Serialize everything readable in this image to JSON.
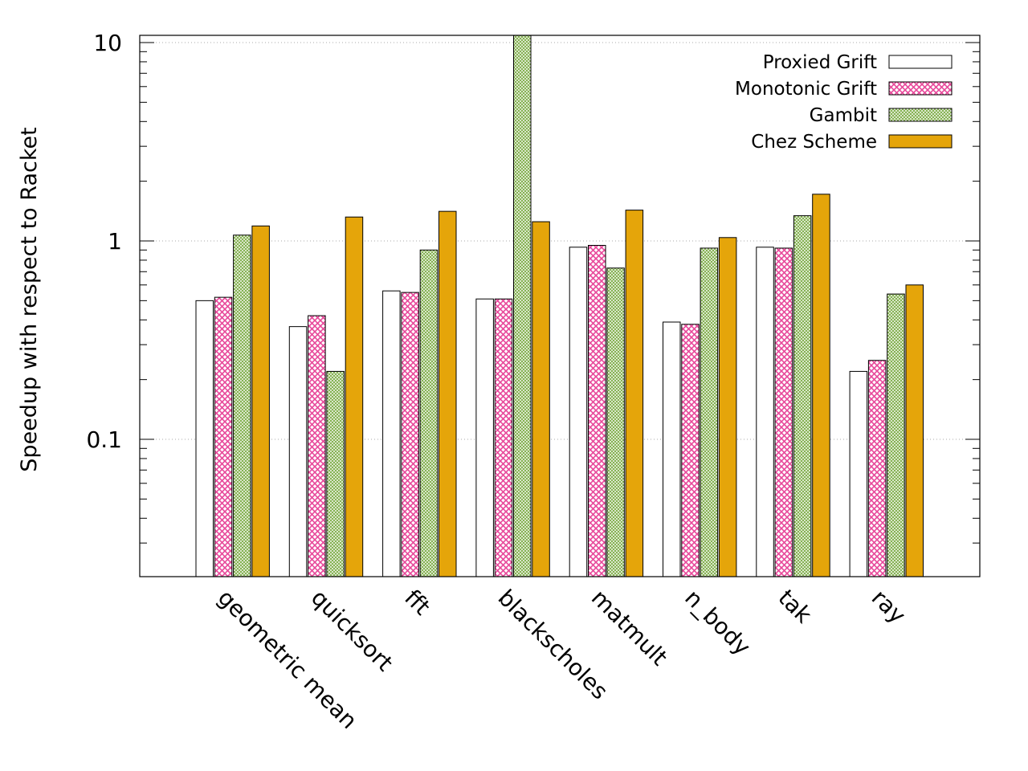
{
  "chart_data": {
    "type": "bar",
    "title": "",
    "xlabel": "",
    "ylabel": "Speedup with respect to Racket",
    "yscale": "log",
    "ylim": [
      0.02,
      11
    ],
    "yticks": [
      {
        "value": 0.1,
        "label": "0.1"
      },
      {
        "value": 1,
        "label": "1"
      },
      {
        "value": 10,
        "label": "10"
      }
    ],
    "grid": "horizontal dotted at major ticks",
    "legend_position": "top-right",
    "categories": [
      "geometric mean",
      "quicksort",
      "fft",
      "blackscholes",
      "matmult",
      "n_body",
      "tak",
      "ray"
    ],
    "series": [
      {
        "name": "Proxied Grift",
        "color": "#ffffff",
        "pattern": "solid",
        "values": [
          0.5,
          0.37,
          0.56,
          0.51,
          0.93,
          0.39,
          0.93,
          0.22
        ]
      },
      {
        "name": "Monotonic Grift",
        "color": "#e8489a",
        "pattern": "crosshatch",
        "values": [
          0.52,
          0.42,
          0.55,
          0.51,
          0.95,
          0.38,
          0.92,
          0.25
        ]
      },
      {
        "name": "Gambit",
        "color": "#8fbf5a",
        "pattern": "fine-crosshatch",
        "values": [
          1.07,
          0.22,
          0.9,
          11,
          0.73,
          0.92,
          1.34,
          0.54
        ]
      },
      {
        "name": "Chez Scheme",
        "color": "#e5a50a",
        "pattern": "solid",
        "values": [
          1.19,
          1.32,
          1.41,
          1.25,
          1.43,
          1.04,
          1.72,
          0.6
        ]
      }
    ]
  }
}
